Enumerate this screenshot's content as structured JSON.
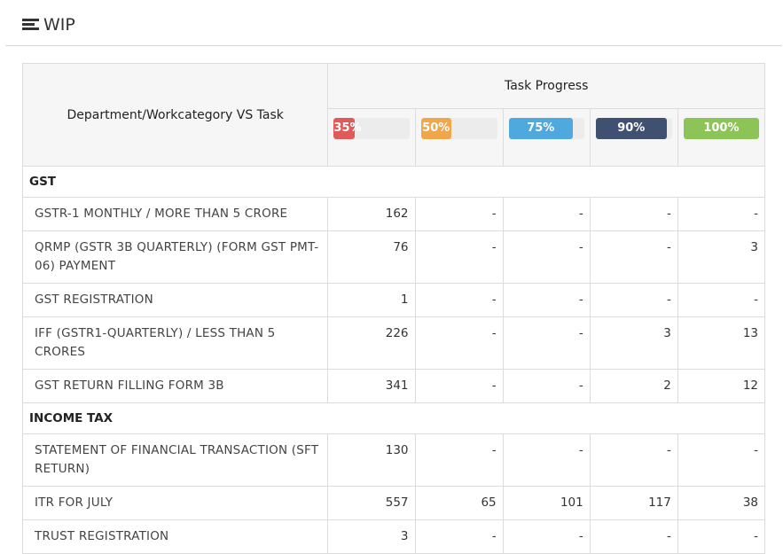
{
  "header": {
    "title": "WIP",
    "icon": "tasks-list-icon"
  },
  "table": {
    "dept_header": "Department/Workcategory VS Task",
    "progress_header": "Task Progress",
    "progress_levels": [
      {
        "label": "35%",
        "value": 35,
        "color": "#e05a5a"
      },
      {
        "label": "50%",
        "value": 50,
        "color": "#f0a64a"
      },
      {
        "label": "75%",
        "value": 75,
        "color": "#4fa8de"
      },
      {
        "label": "90%",
        "value": 90,
        "color": "#3f5070"
      },
      {
        "label": "100%",
        "value": 100,
        "color": "#8cc457"
      }
    ],
    "sections": [
      {
        "name": "GST",
        "rows": [
          {
            "name": "GSTR-1 MONTHLY / MORE THAN 5 CRORE",
            "values": [
              "162",
              "-",
              "-",
              "-",
              "-"
            ]
          },
          {
            "name": "QRMP (GSTR 3B QUARTERLY) (FORM GST PMT-06) PAYMENT",
            "values": [
              "76",
              "-",
              "-",
              "-",
              "3"
            ]
          },
          {
            "name": "GST REGISTRATION",
            "values": [
              "1",
              "-",
              "-",
              "-",
              "-"
            ]
          },
          {
            "name": "IFF (GSTR1-QUARTERLY) / LESS THAN 5 CRORES",
            "values": [
              "226",
              "-",
              "-",
              "3",
              "13"
            ]
          },
          {
            "name": "GST RETURN FILLING FORM 3B",
            "values": [
              "341",
              "-",
              "-",
              "2",
              "12"
            ]
          }
        ]
      },
      {
        "name": "INCOME TAX",
        "rows": [
          {
            "name": "STATEMENT OF FINANCIAL TRANSACTION (SFT RETURN)",
            "values": [
              "130",
              "-",
              "-",
              "-",
              "-"
            ]
          },
          {
            "name": "ITR FOR JULY",
            "values": [
              "557",
              "65",
              "101",
              "117",
              "38"
            ]
          },
          {
            "name": "TRUST REGISTRATION",
            "values": [
              "3",
              "-",
              "-",
              "-",
              "-"
            ]
          }
        ]
      }
    ]
  }
}
